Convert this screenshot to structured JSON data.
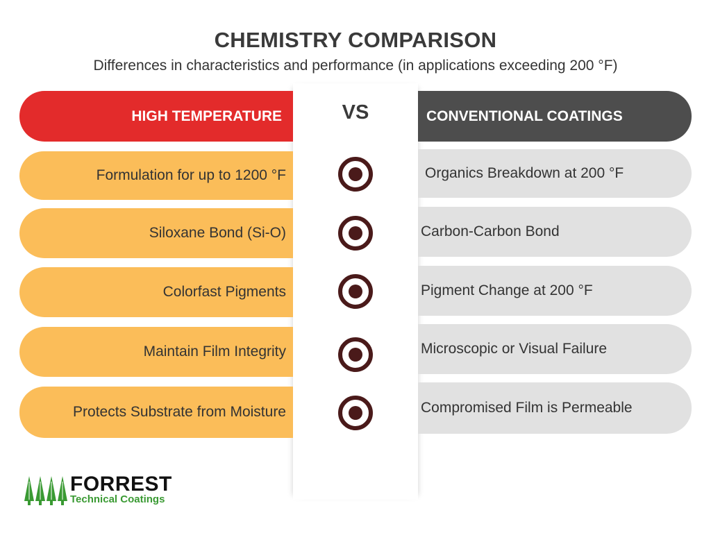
{
  "header": {
    "title": "CHEMISTRY COMPARISON",
    "subtitle": "Differences in characteristics and performance (in applications exceeding 200 °F)"
  },
  "columns": {
    "left_title": "HIGH TEMPERATURE",
    "vs_label": "VS",
    "right_title": "CONVENTIONAL COATINGS"
  },
  "rows": [
    {
      "left": "Formulation for up to 1200 °F",
      "right": "Organics Breakdown at 200 °F"
    },
    {
      "left": "Siloxane Bond (Si-O)",
      "right": "Carbon-Carbon Bond"
    },
    {
      "left": "Colorfast Pigments",
      "right": "Pigment Change at 200 °F"
    },
    {
      "left": "Maintain Film Integrity",
      "right": "Microscopic or Visual Failure"
    },
    {
      "left": "Protects Substrate from Moisture",
      "right": "Compromised Film is Permeable"
    }
  ],
  "icons": {
    "row_marker": "target-icon",
    "logo_mark": "tree-icon"
  },
  "logo": {
    "name": "FORREST",
    "tagline": "Technical Coatings"
  },
  "colors": {
    "high_temp_header": "#e32b2b",
    "conventional_header": "#4d4d4d",
    "high_temp_row": "#fbbd59",
    "conventional_row": "#e1e1e1",
    "marker": "#4a1a1a",
    "logo_green": "#3a9a33"
  }
}
